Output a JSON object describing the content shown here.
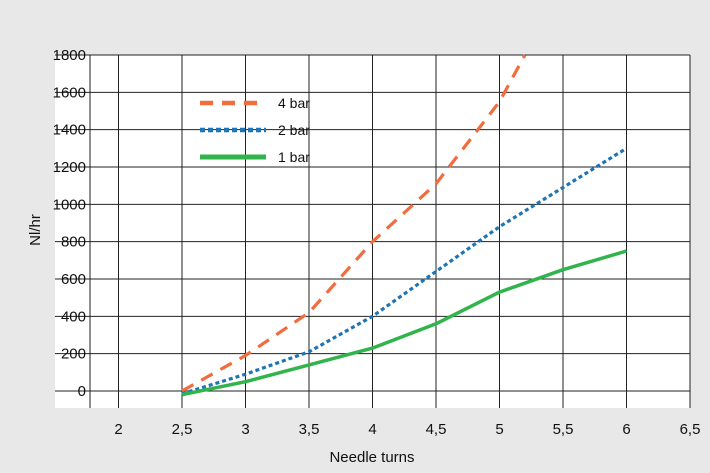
{
  "chart_data": {
    "type": "line",
    "xlabel": "Needle turns",
    "ylabel": "Nl/hr",
    "xlim": [
      1.5,
      6.5
    ],
    "ylim": [
      -100,
      1800
    ],
    "x_ticks": [
      2,
      2.5,
      3,
      3.5,
      4,
      4.5,
      5,
      5.5,
      6,
      6.5
    ],
    "x_tick_labels": [
      "2",
      "2,5",
      "3",
      "3,5",
      "4",
      "4,5",
      "5",
      "5,5",
      "6",
      "6,5"
    ],
    "y_ticks": [
      0,
      200,
      400,
      600,
      800,
      1000,
      1200,
      1400,
      1600,
      1800
    ],
    "y_tick_labels": [
      "0",
      "200",
      "400",
      "600",
      "800",
      "1000",
      "1200",
      "1400",
      "1600",
      "1800"
    ],
    "grid": true,
    "legend_position": "top-left",
    "series": [
      {
        "name": "4 bar",
        "color": "#f26c3d",
        "style": "dashed",
        "points": [
          [
            2.5,
            0
          ],
          [
            3,
            190
          ],
          [
            3.5,
            420
          ],
          [
            4,
            800
          ],
          [
            4.5,
            1110
          ],
          [
            5,
            1550
          ],
          [
            5.2,
            1800
          ]
        ]
      },
      {
        "name": "2 bar",
        "color": "#1f74b5",
        "style": "dotted",
        "points": [
          [
            2.5,
            -15
          ],
          [
            3,
            90
          ],
          [
            3.5,
            210
          ],
          [
            4,
            400
          ],
          [
            4.5,
            640
          ],
          [
            5,
            880
          ],
          [
            5.5,
            1090
          ],
          [
            6,
            1300
          ]
        ]
      },
      {
        "name": "1 bar",
        "color": "#31b44b",
        "style": "solid",
        "points": [
          [
            2.5,
            -20
          ],
          [
            3,
            50
          ],
          [
            3.5,
            140
          ],
          [
            4,
            230
          ],
          [
            4.5,
            360
          ],
          [
            5,
            530
          ],
          [
            5.5,
            650
          ],
          [
            6,
            750
          ]
        ]
      }
    ]
  }
}
